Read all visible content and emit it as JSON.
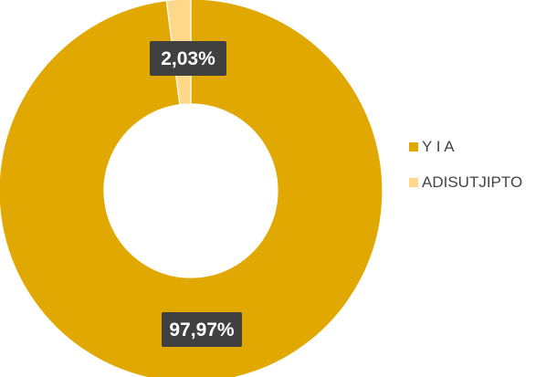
{
  "chart_data": {
    "type": "pie",
    "donut": true,
    "categories": [
      "Y I A",
      "ADISUTJIPTO"
    ],
    "values": [
      97.97,
      2.03
    ],
    "labels": [
      "97,97%",
      "2,03%"
    ],
    "colors": [
      "#E0A800",
      "#FFD88A"
    ],
    "legend_position": "right"
  }
}
